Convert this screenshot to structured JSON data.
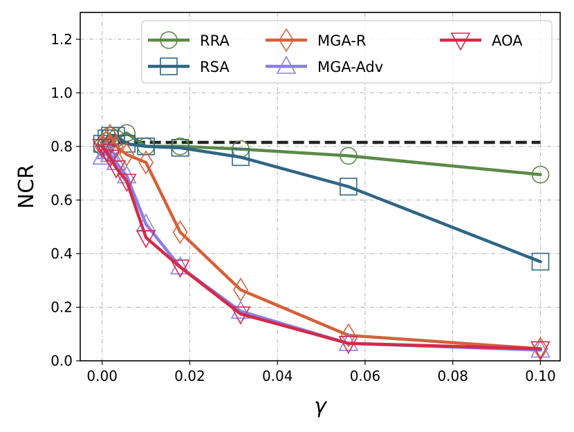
{
  "chart_data": {
    "type": "line",
    "xlabel": "γ",
    "ylabel": "NCR",
    "xlim": [
      -0.005,
      0.1045
    ],
    "ylim": [
      0.0,
      1.3
    ],
    "xticks": [
      0.0,
      0.02,
      0.04,
      0.06,
      0.08,
      0.1
    ],
    "xtick_labels": [
      "0.00",
      "0.02",
      "0.04",
      "0.06",
      "0.08",
      "0.10"
    ],
    "yticks": [
      0.0,
      0.2,
      0.4,
      0.6,
      0.8,
      1.0,
      1.2
    ],
    "ytick_labels": [
      "0.0",
      "0.2",
      "0.4",
      "0.6",
      "0.8",
      "1.0",
      "1.2"
    ],
    "grid": true,
    "legend_position": "top-right",
    "reference_line": {
      "y": 0.815,
      "x_range": [
        0.0,
        0.1
      ],
      "style": "dashed",
      "color": "#222222"
    },
    "series": [
      {
        "name": "RRA",
        "color": "#5b8a47",
        "marker": "circle",
        "x": [
          0.0,
          0.001,
          0.0018,
          0.0032,
          0.0056,
          0.01,
          0.0178,
          0.0316,
          0.0562,
          0.1
        ],
        "y": [
          0.8,
          0.82,
          0.84,
          0.83,
          0.85,
          0.8,
          0.8,
          0.79,
          0.765,
          0.695
        ]
      },
      {
        "name": "RSA",
        "color": "#2e6685",
        "marker": "square",
        "x": [
          0.0,
          0.001,
          0.0018,
          0.0032,
          0.0056,
          0.01,
          0.0178,
          0.0316,
          0.0562,
          0.1
        ],
        "y": [
          0.81,
          0.83,
          0.84,
          0.84,
          0.81,
          0.8,
          0.795,
          0.76,
          0.65,
          0.37
        ]
      },
      {
        "name": "MGA-R",
        "color": "#d6603a",
        "marker": "diamond",
        "x": [
          0.0,
          0.001,
          0.0018,
          0.0032,
          0.0056,
          0.01,
          0.0178,
          0.0316,
          0.0562,
          0.1
        ],
        "y": [
          0.8,
          0.82,
          0.84,
          0.8,
          0.77,
          0.74,
          0.48,
          0.265,
          0.095,
          0.045
        ]
      },
      {
        "name": "MGA-Adv",
        "color": "#8b7fe8",
        "marker": "triangle-up",
        "x": [
          0.0,
          0.001,
          0.0018,
          0.0032,
          0.0056,
          0.01,
          0.0178,
          0.0316,
          0.0562,
          0.1
        ],
        "y": [
          0.76,
          0.78,
          0.77,
          0.74,
          0.69,
          0.51,
          0.35,
          0.185,
          0.065,
          0.04
        ]
      },
      {
        "name": "AOA",
        "color": "#d42a4a",
        "marker": "triangle-down",
        "x": [
          0.0,
          0.001,
          0.0018,
          0.0032,
          0.0056,
          0.01,
          0.0178,
          0.0316,
          0.0562,
          0.1
        ],
        "y": [
          0.8,
          0.78,
          0.76,
          0.72,
          0.67,
          0.46,
          0.35,
          0.175,
          0.065,
          0.045
        ]
      }
    ]
  }
}
